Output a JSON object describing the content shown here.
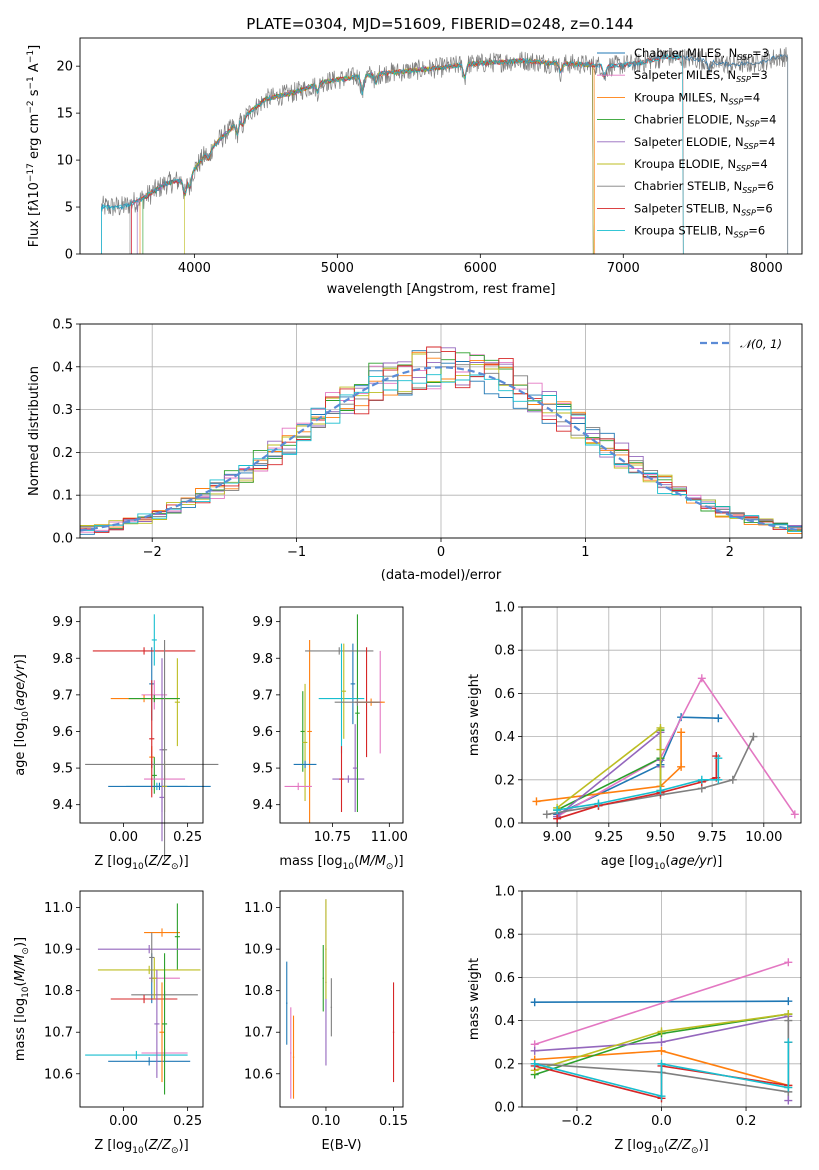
{
  "figure": {
    "title": "PLATE=0304, MJD=51609, FIBERID=0248, z=0.144"
  },
  "models": [
    {
      "name": "Chabrier MILES",
      "nssp": "3",
      "color": "#1f77b4"
    },
    {
      "name": "Salpeter MILES",
      "nssp": "3",
      "color": "#e377c2"
    },
    {
      "name": "Kroupa MILES",
      "nssp": "4",
      "color": "#ff7f0e"
    },
    {
      "name": "Chabrier ELODIE",
      "nssp": "4",
      "color": "#2ca02c"
    },
    {
      "name": "Salpeter ELODIE",
      "nssp": "4",
      "color": "#9467bd"
    },
    {
      "name": "Kroupa ELODIE",
      "nssp": "4",
      "color": "#bcbd22"
    },
    {
      "name": "Chabrier STELIB",
      "nssp": "6",
      "color": "#7f7f7f"
    },
    {
      "name": "Salpeter STELIB",
      "nssp": "6",
      "color": "#d62728"
    },
    {
      "name": "Kroupa STELIB",
      "nssp": "6",
      "color": "#17becf"
    }
  ],
  "chart_data": [
    {
      "id": "spectrum",
      "type": "line",
      "xlabel": "wavelength [Angstrom, rest frame]",
      "ylabel": "Flux [f",
      "xlim": [
        3200,
        8250
      ],
      "ylim": [
        0,
        23
      ],
      "xticks": [
        4000,
        5000,
        6000,
        7000,
        8000
      ],
      "yticks": [
        0,
        5,
        10,
        15,
        20
      ],
      "grid": false,
      "legend": "right",
      "continuum": {
        "x": [
          3350,
          3500,
          3650,
          3800,
          3950,
          4100,
          4300,
          4500,
          4700,
          4900,
          5100,
          5300,
          5500,
          5700,
          5900,
          6100,
          6300,
          6500,
          6700,
          6900,
          7100,
          7300,
          7500,
          7700,
          7900,
          8100
        ],
        "y": [
          5.0,
          5.0,
          6.0,
          7.5,
          8.0,
          11.0,
          14.0,
          16.5,
          17.2,
          18.3,
          18.8,
          19.2,
          19.5,
          19.8,
          20.2,
          20.4,
          20.6,
          20.3,
          20.2,
          20.0,
          20.3,
          21.0,
          20.8,
          20.2,
          20.3,
          21.0
        ]
      }
    },
    {
      "id": "residuals",
      "type": "bar",
      "xlabel": "(data-model)/error",
      "ylabel": "Normed distribution",
      "xlim": [
        -2.5,
        2.5
      ],
      "ylim": [
        0,
        0.5
      ],
      "xticks": [
        -2,
        -1,
        0,
        1,
        2
      ],
      "yticks": [
        0.0,
        0.1,
        0.2,
        0.3,
        0.4,
        0.5
      ],
      "grid": true,
      "legend": "top-right",
      "legend_entry": "𝒩(0, 1)",
      "bin_width": 0.1,
      "gaussian": {
        "mean": 0,
        "sigma": 1
      }
    },
    {
      "id": "Z-age",
      "type": "scatter",
      "xlabel": "Z [log",
      "ylabel": "age  [log",
      "xlim": [
        -0.17,
        0.31
      ],
      "ylim": [
        9.35,
        9.94
      ],
      "xticks": [
        0.0,
        0.25
      ],
      "yticks": [
        9.4,
        9.5,
        9.6,
        9.7,
        9.8,
        9.9
      ],
      "points": [
        {
          "x": 0.11,
          "y": 9.73,
          "xe": 0.01,
          "ye": 0.1
        },
        {
          "x": 0.12,
          "y": 9.7,
          "xe": 0.05,
          "ye": 0.04
        },
        {
          "x": 0.11,
          "y": 9.53,
          "xe": 0.01,
          "ye": 0.03
        },
        {
          "x": 0.12,
          "y": 9.48,
          "xe": 0.01,
          "ye": 0.05
        },
        {
          "x": 0.15,
          "y": 9.55,
          "xe": 0.01,
          "ye": 0.25
        },
        {
          "x": 0.21,
          "y": 9.68,
          "xe": 0.01,
          "ye": 0.12
        },
        {
          "x": 0.11,
          "y": 9.51,
          "xe": 0.26,
          "ye": 0.01
        },
        {
          "x": 0.08,
          "y": 9.82,
          "xe": 0.2,
          "ye": 0.01
        },
        {
          "x": 0.13,
          "y": 9.45,
          "xe": 0.12,
          "ye": 0.01
        },
        {
          "x": 0.14,
          "y": 9.45,
          "xe": 0.2,
          "ye": 0.01
        },
        {
          "x": 0.16,
          "y": 9.47,
          "xe": 0.08,
          "ye": 0.01
        },
        {
          "x": 0.08,
          "y": 9.69,
          "xe": 0.13,
          "ye": 0.01
        },
        {
          "x": 0.12,
          "y": 9.69,
          "xe": 0.1,
          "ye": 0.01
        },
        {
          "x": 0.15,
          "y": 9.42,
          "xe": 0.01,
          "ye": 0.04
        },
        {
          "x": 0.16,
          "y": 9.45,
          "xe": 0.01,
          "ye": 0.07
        },
        {
          "x": 0.16,
          "y": 9.55,
          "xe": 0.01,
          "ye": 0.3
        },
        {
          "x": 0.11,
          "y": 9.58,
          "xe": 0.01,
          "ye": 0.16
        },
        {
          "x": 0.12,
          "y": 9.85,
          "xe": 0.01,
          "ye": 0.07
        }
      ]
    },
    {
      "id": "mass-age",
      "type": "scatter",
      "xlabel": "mass [log",
      "ylabel": "",
      "xlim": [
        10.52,
        11.06
      ],
      "ylim": [
        9.35,
        9.94
      ],
      "xticks": [
        10.75,
        11.0
      ],
      "yticks": [
        9.4,
        9.5,
        9.6,
        9.7,
        9.8,
        9.9
      ],
      "points": [
        {
          "x": 10.84,
          "y": 9.73,
          "xe": 0.01,
          "ye": 0.11
        },
        {
          "x": 10.96,
          "y": 9.68,
          "xe": 0.01,
          "ye": 0.14
        },
        {
          "x": 10.65,
          "y": 9.6,
          "xe": 0.01,
          "ye": 0.25
        },
        {
          "x": 10.62,
          "y": 9.6,
          "xe": 0.01,
          "ye": 0.11
        },
        {
          "x": 10.82,
          "y": 9.47,
          "xe": 0.07,
          "ye": 0.01
        },
        {
          "x": 10.63,
          "y": 9.57,
          "xe": 0.01,
          "ye": 0.16
        },
        {
          "x": 10.78,
          "y": 9.82,
          "xe": 0.15,
          "ye": 0.01
        },
        {
          "x": 10.9,
          "y": 9.68,
          "xe": 0.05,
          "ye": 0.15
        },
        {
          "x": 10.79,
          "y": 9.69,
          "xe": 0.1,
          "ye": 0.15
        },
        {
          "x": 10.63,
          "y": 9.51,
          "xe": 0.05,
          "ye": 0.01
        },
        {
          "x": 10.6,
          "y": 9.45,
          "xe": 0.06,
          "ye": 0.01
        },
        {
          "x": 10.92,
          "y": 9.68,
          "xe": 0.06,
          "ye": 0.01
        },
        {
          "x": 10.86,
          "y": 9.65,
          "xe": 0.01,
          "ye": 0.27
        },
        {
          "x": 10.85,
          "y": 9.5,
          "xe": 0.01,
          "ye": 0.12
        },
        {
          "x": 10.8,
          "y": 9.71,
          "xe": 0.01,
          "ye": 0.13
        },
        {
          "x": 10.86,
          "y": 9.68,
          "xe": 0.1,
          "ye": 0.01
        },
        {
          "x": 10.79,
          "y": 9.47,
          "xe": 0.01,
          "ye": 0.09
        }
      ]
    },
    {
      "id": "age-weight",
      "type": "line",
      "xlabel": "age  [log",
      "ylabel": "mass weight",
      "xlim": [
        8.83,
        10.18
      ],
      "ylim": [
        0,
        1
      ],
      "xticks": [
        9.0,
        9.25,
        9.5,
        9.75,
        10.0
      ],
      "yticks": [
        0.0,
        0.2,
        0.4,
        0.6,
        0.8,
        1.0
      ],
      "grid": true,
      "series": [
        {
          "model": 0,
          "x": [
            9.0,
            9.5,
            9.6,
            9.78
          ],
          "y": [
            0.04,
            0.27,
            0.49,
            0.485
          ]
        },
        {
          "model": 1,
          "x": [
            9.0,
            9.5,
            9.7,
            10.15
          ],
          "y": [
            0.03,
            0.3,
            0.67,
            0.04
          ]
        },
        {
          "model": 2,
          "x": [
            8.9,
            9.5,
            9.6,
            9.6
          ],
          "y": [
            0.1,
            0.17,
            0.26,
            0.42
          ]
        },
        {
          "model": 3,
          "x": [
            9.0,
            9.5,
            9.5,
            9.5
          ],
          "y": [
            0.06,
            0.3,
            0.15,
            0.43
          ]
        },
        {
          "model": 4,
          "x": [
            9.0,
            9.5,
            9.5,
            9.5
          ],
          "y": [
            0.03,
            0.42,
            0.29,
            0.26
          ]
        },
        {
          "model": 5,
          "x": [
            9.0,
            9.5,
            9.5,
            9.5
          ],
          "y": [
            0.07,
            0.44,
            0.34,
            0.15
          ]
        },
        {
          "model": 6,
          "x": [
            8.95,
            9.2,
            9.5,
            9.7,
            9.85,
            9.95
          ],
          "y": [
            0.04,
            0.08,
            0.13,
            0.16,
            0.2,
            0.4
          ]
        },
        {
          "model": 7,
          "x": [
            9.0,
            9.2,
            9.5,
            9.7,
            9.77,
            9.77
          ],
          "y": [
            0.02,
            0.08,
            0.14,
            0.19,
            0.21,
            0.31
          ]
        },
        {
          "model": 8,
          "x": [
            9.0,
            9.2,
            9.5,
            9.7,
            9.78,
            9.78
          ],
          "y": [
            0.06,
            0.09,
            0.15,
            0.2,
            0.2,
            0.3
          ]
        }
      ]
    },
    {
      "id": "Z-mass",
      "type": "scatter",
      "xlabel": "Z [log",
      "ylabel": "mass [log",
      "xlim": [
        -0.17,
        0.31
      ],
      "ylim": [
        10.52,
        11.04
      ],
      "xticks": [
        0.0,
        0.25
      ],
      "yticks": [
        10.6,
        10.7,
        10.8,
        10.9,
        11.0
      ],
      "points": [
        {
          "x": 0.11,
          "y": 10.83,
          "xe": 0.01,
          "ye": 0.06
        },
        {
          "x": 0.16,
          "y": 10.83,
          "xe": 0.06,
          "ye": 0.01
        },
        {
          "x": 0.15,
          "y": 10.94,
          "xe": 0.07,
          "ye": 0.01
        },
        {
          "x": 0.21,
          "y": 10.93,
          "xe": 0.01,
          "ye": 0.08
        },
        {
          "x": 0.1,
          "y": 10.9,
          "xe": 0.2,
          "ye": 0.01
        },
        {
          "x": 0.1,
          "y": 10.85,
          "xe": 0.2,
          "ye": 0.01
        },
        {
          "x": 0.16,
          "y": 10.79,
          "xe": 0.13,
          "ye": 0.01
        },
        {
          "x": 0.08,
          "y": 10.78,
          "xe": 0.13,
          "ye": 0.01
        },
        {
          "x": 0.05,
          "y": 10.645,
          "xe": 0.2,
          "ye": 0.01
        },
        {
          "x": 0.1,
          "y": 10.63,
          "xe": 0.16,
          "ye": 0.01
        },
        {
          "x": 0.16,
          "y": 10.65,
          "xe": 0.09,
          "ye": 0.01
        },
        {
          "x": 0.15,
          "y": 10.7,
          "xe": 0.01,
          "ye": 0.12
        },
        {
          "x": 0.16,
          "y": 10.72,
          "xe": 0.01,
          "ye": 0.17
        },
        {
          "x": 0.13,
          "y": 10.72,
          "xe": 0.01,
          "ye": 0.13
        },
        {
          "x": 0.12,
          "y": 10.83,
          "xe": 0.01,
          "ye": 0.05
        },
        {
          "x": 0.11,
          "y": 10.88,
          "xe": 0.01,
          "ye": 0.06
        }
      ]
    },
    {
      "id": "ebv-mass",
      "type": "scatter",
      "xlabel": "E(B-V)",
      "ylabel": "",
      "xlim": [
        0.066,
        0.157
      ],
      "ylim": [
        10.52,
        11.04
      ],
      "xticks": [
        0.1,
        0.15
      ],
      "yticks": [
        10.6,
        10.7,
        10.8,
        10.9,
        11.0
      ],
      "points": [
        {
          "x": 0.071,
          "y": 10.77,
          "xe": 0.0005,
          "ye": 0.1
        },
        {
          "x": 0.074,
          "y": 10.65,
          "xe": 0.0005,
          "ye": 0.11
        },
        {
          "x": 0.076,
          "y": 10.64,
          "xe": 0.0005,
          "ye": 0.1
        },
        {
          "x": 0.098,
          "y": 10.83,
          "xe": 0.0005,
          "ye": 0.08
        },
        {
          "x": 0.1,
          "y": 10.82,
          "xe": 0.0005,
          "ye": 0.2
        },
        {
          "x": 0.1,
          "y": 10.9,
          "xe": 0.0005,
          "ye": 0.12
        },
        {
          "x": 0.104,
          "y": 10.76,
          "xe": 0.0005,
          "ye": 0.07
        },
        {
          "x": 0.15,
          "y": 10.7,
          "xe": 0.0005,
          "ye": 0.12
        }
      ]
    },
    {
      "id": "Z-weight",
      "type": "line",
      "xlabel": "Z [log",
      "ylabel": "mass weight",
      "xlim": [
        -0.33,
        0.33
      ],
      "ylim": [
        0,
        1
      ],
      "xticks": [
        -0.2,
        0.0,
        0.2
      ],
      "yticks": [
        0.0,
        0.2,
        0.4,
        0.6,
        0.8,
        1.0
      ],
      "grid": true,
      "series": [
        {
          "model": 0,
          "x": [
            -0.3,
            0.3
          ],
          "y": [
            0.485,
            0.49
          ]
        },
        {
          "model": 1,
          "x": [
            -0.3,
            0.3
          ],
          "y": [
            0.29,
            0.67
          ]
        },
        {
          "model": 2,
          "x": [
            -0.3,
            0.0,
            0.3
          ],
          "y": [
            0.22,
            0.26,
            0.1
          ]
        },
        {
          "model": 3,
          "x": [
            -0.3,
            0.0,
            0.3
          ],
          "y": [
            0.15,
            0.34,
            0.43
          ]
        },
        {
          "model": 4,
          "x": [
            -0.3,
            0.0,
            0.3,
            0.3
          ],
          "y": [
            0.26,
            0.3,
            0.42,
            0.03
          ]
        },
        {
          "model": 5,
          "x": [
            -0.3,
            0.0,
            0.3
          ],
          "y": [
            0.17,
            0.35,
            0.43
          ]
        },
        {
          "model": 6,
          "x": [
            -0.3,
            0.0,
            0.3,
            0.3
          ],
          "y": [
            0.2,
            0.16,
            0.07,
            0.4
          ]
        },
        {
          "model": 7,
          "x": [
            -0.3,
            0.0,
            0.0,
            0.3,
            0.3
          ],
          "y": [
            0.19,
            0.04,
            0.19,
            0.1,
            0.3
          ]
        },
        {
          "model": 8,
          "x": [
            -0.3,
            0.0,
            0.0,
            0.3,
            0.3
          ],
          "y": [
            0.2,
            0.05,
            0.2,
            0.09,
            0.3
          ]
        }
      ]
    }
  ]
}
